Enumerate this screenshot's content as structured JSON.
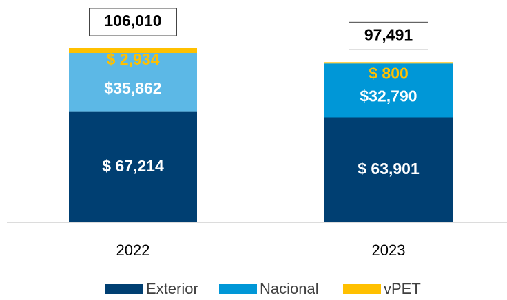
{
  "chart_data": {
    "type": "stacked-bar",
    "categories": [
      "2022",
      "2023"
    ],
    "series": [
      {
        "name": "Exterior",
        "color": "#003f72",
        "values": [
          67214,
          63901
        ],
        "value_labels": [
          "$ 67,214",
          "$ 63,901"
        ]
      },
      {
        "name": "Nacional",
        "color": "#0097d7",
        "colors": [
          "#5cb8e6",
          "#0097d7"
        ],
        "values": [
          35862,
          32790
        ],
        "value_labels": [
          "$35,862",
          "$32,790"
        ]
      },
      {
        "name": "vPET",
        "color": "#ffc000",
        "values": [
          2934,
          800
        ],
        "value_labels": [
          "$ 2,934",
          "$ 800"
        ]
      }
    ],
    "totals": [
      106010,
      97491
    ],
    "total_labels": [
      "106,010",
      "97,491"
    ]
  }
}
